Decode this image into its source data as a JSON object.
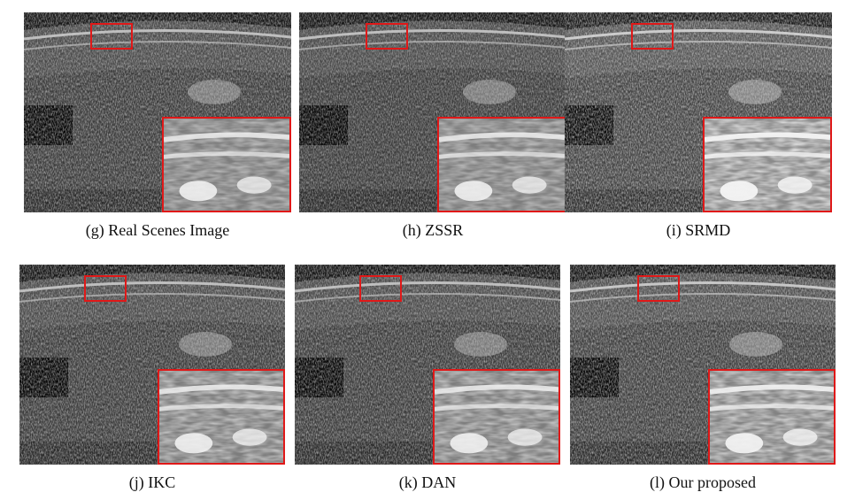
{
  "figure": {
    "panels": [
      {
        "caption": "(g) Real Scenes Image"
      },
      {
        "caption": "(h) ZSSR"
      },
      {
        "caption": "(i) SRMD"
      },
      {
        "caption": "(j) IKC"
      },
      {
        "caption": "(k) DAN"
      },
      {
        "caption": "(l) Our proposed"
      }
    ]
  },
  "colors": {
    "highlight_box": "#e01818",
    "background": "#ffffff"
  }
}
